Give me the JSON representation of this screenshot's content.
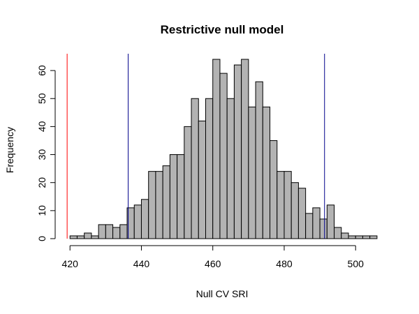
{
  "chart_data": {
    "type": "bar",
    "title": "Restrictive null model",
    "xlabel": "Null CV SRI",
    "ylabel": "Frequency",
    "xlim": [
      418,
      507
    ],
    "ylim": [
      0,
      66
    ],
    "x_ticks": [
      420,
      440,
      460,
      480,
      500
    ],
    "y_ticks": [
      0,
      10,
      20,
      30,
      40,
      50,
      60
    ],
    "grid": false,
    "bin_width": 2,
    "bins": {
      "start": [
        420,
        422,
        424,
        426,
        428,
        430,
        432,
        434,
        436,
        438,
        440,
        442,
        444,
        446,
        448,
        450,
        452,
        454,
        456,
        458,
        460,
        462,
        464,
        466,
        468,
        470,
        472,
        474,
        476,
        478,
        480,
        482,
        484,
        486,
        488,
        490,
        492,
        494,
        496,
        498,
        500,
        502,
        504
      ],
      "counts": [
        1,
        1,
        2,
        1,
        5,
        5,
        4,
        5,
        11,
        12,
        14,
        24,
        24,
        26,
        30,
        30,
        40,
        50,
        42,
        50,
        64,
        59,
        50,
        62,
        64,
        47,
        56,
        47,
        35,
        24,
        24,
        20,
        18,
        9,
        11,
        7,
        12,
        4,
        2,
        1,
        1,
        1,
        1
      ]
    },
    "bar_color": "#b3b3b3",
    "reference_lines": [
      {
        "x": 419.2,
        "color": "#ff0000"
      },
      {
        "x": 436.3,
        "color": "#00008b"
      },
      {
        "x": 491.3,
        "color": "#00008b"
      }
    ]
  }
}
